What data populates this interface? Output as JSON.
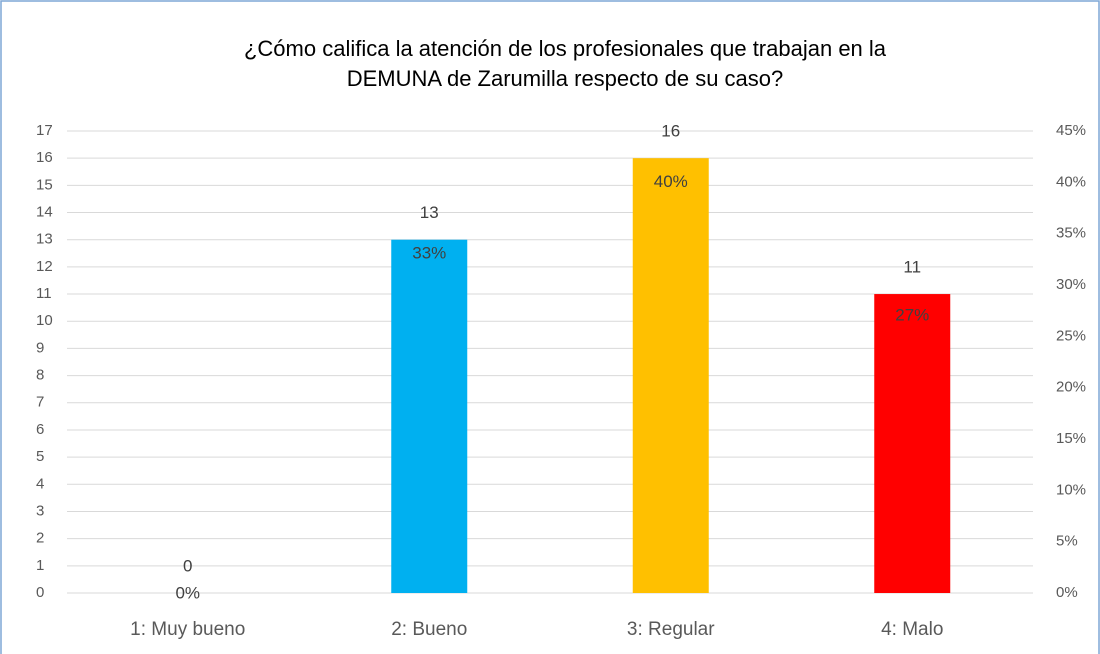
{
  "chart_data": {
    "type": "bar",
    "title": [
      "¿Cómo califica la atención de los profesionales que trabajan en la",
      "DEMUNA de Zarumilla respecto de su caso?"
    ],
    "categories": [
      "1: Muy bueno",
      "2: Bueno",
      "3: Regular",
      "4: Malo"
    ],
    "series": [
      {
        "values": [
          0,
          13,
          16,
          11
        ],
        "colors": [
          "#a5a5a5",
          "#00b0f0",
          "#ffc000",
          "#ff0000"
        ]
      },
      {
        "axis": "y2",
        "values": [
          0,
          33,
          40,
          27
        ],
        "value_labels": [
          "0%",
          "33%",
          "40%",
          "27%"
        ]
      }
    ],
    "ylim": [
      0,
      17
    ],
    "yticks": [
      0,
      1,
      2,
      3,
      4,
      5,
      6,
      7,
      8,
      9,
      10,
      11,
      12,
      13,
      14,
      15,
      16,
      17
    ],
    "y2lim": [
      0,
      45
    ],
    "y2ticks": [
      {
        "value": 0,
        "label": "0%"
      },
      {
        "value": 5,
        "label": "5%"
      },
      {
        "value": 10,
        "label": "10%"
      },
      {
        "value": 15,
        "label": "15%"
      },
      {
        "value": 20,
        "label": "20%"
      },
      {
        "value": 25,
        "label": "25%"
      },
      {
        "value": 30,
        "label": "30%"
      },
      {
        "value": 35,
        "label": "35%"
      },
      {
        "value": 40,
        "label": "40%"
      },
      {
        "value": 45,
        "label": "45%"
      }
    ],
    "grid": true
  }
}
